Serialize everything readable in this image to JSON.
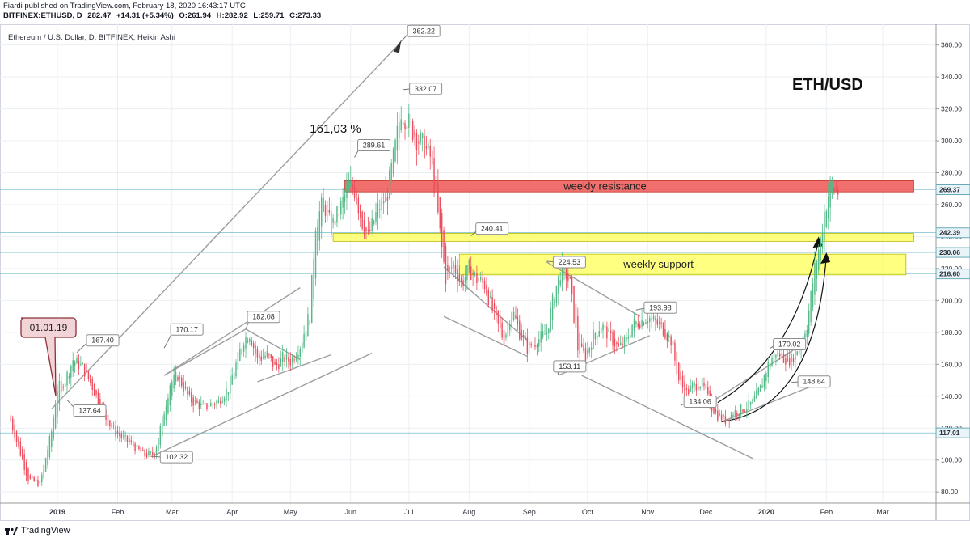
{
  "header": {
    "publisher_line": "Fiardi published on TradingView.com, February 18, 2020 16:43:17 UTC",
    "symbol": "BITFINEX:ETHUSD, D",
    "last": "282.47",
    "change": "+14.31 (+5.34%)",
    "open": "O:261.94",
    "high": "H:282.92",
    "low": "L:259.71",
    "close": "C:273.33"
  },
  "chart_title": "Ethereum / U.S. Dollar, D, BITFINEX, Heikin Ashi",
  "big_label": "ETH/USD",
  "footer": {
    "brand": "TradingView"
  },
  "colors": {
    "up": "#53b987",
    "down": "#eb4d5c",
    "resistance": "#f0605e",
    "support": "#ffff55",
    "trend_line": "#9e9e9e"
  },
  "chart_data": {
    "type": "candlestick",
    "style": "Heikin Ashi",
    "x_labels": [
      "2019",
      "Feb",
      "Mar",
      "Apr",
      "May",
      "Jun",
      "Jul",
      "Aug",
      "Sep",
      "Oct",
      "Nov",
      "Dec",
      "2020",
      "Feb",
      "Mar"
    ],
    "x_label_days": [
      0,
      31,
      59,
      90,
      120,
      151,
      181,
      212,
      243,
      273,
      304,
      334,
      365,
      396,
      425
    ],
    "y_ticks": [
      "80.00",
      "100.00",
      "120.00",
      "140.00",
      "160.00",
      "180.00",
      "200.00",
      "220.00",
      "240.00",
      "260.00",
      "280.00",
      "300.00",
      "320.00",
      "340.00",
      "360.00"
    ],
    "ylim": [
      73,
      373
    ],
    "grid": true,
    "price_tags": [
      {
        "value": 269.37,
        "label": "269.37"
      },
      {
        "value": 242.39,
        "label": "242.39"
      },
      {
        "value": 230.06,
        "label": "230.06"
      },
      {
        "value": 216.6,
        "label": "216.60"
      },
      {
        "value": 117.01,
        "label": "117.01"
      }
    ],
    "zones": [
      {
        "label": "weekly resistance",
        "day_start": 148,
        "day_end": 441,
        "low": 268,
        "high": 275,
        "kind": "resistance"
      },
      {
        "label": "",
        "day_start": 142,
        "day_end": 441,
        "low": 237,
        "high": 242,
        "kind": "support"
      },
      {
        "label": "weekly support",
        "day_start": 207,
        "day_end": 437,
        "low": 216,
        "high": 229,
        "kind": "support"
      }
    ],
    "callouts": [
      {
        "day": 10,
        "value": 167.4,
        "label": "167.40"
      },
      {
        "day": 5,
        "value": 137.64,
        "label": "137.64"
      },
      {
        "day": 48,
        "value": 102.32,
        "label": "102.32"
      },
      {
        "day": 55,
        "value": 170.17,
        "label": "170.17"
      },
      {
        "day": 97,
        "value": 182.08,
        "label": "182.08"
      },
      {
        "day": 153,
        "value": 289.61,
        "label": "289.61"
      },
      {
        "day": 177,
        "value": 362.22,
        "label": "362.22"
      },
      {
        "day": 178,
        "value": 332.07,
        "label": "332.07"
      },
      {
        "day": 213,
        "value": 240.41,
        "label": "240.41"
      },
      {
        "day": 252,
        "value": 224.53,
        "label": "224.53"
      },
      {
        "day": 298,
        "value": 193.98,
        "label": "193.98"
      },
      {
        "day": 258,
        "value": 153.11,
        "label": "153.11"
      },
      {
        "day": 321,
        "value": 134.06,
        "label": "134.06"
      },
      {
        "day": 367,
        "value": 170.02,
        "label": "170.02"
      },
      {
        "day": 378,
        "value": 148.64,
        "label": "148.64"
      }
    ],
    "date_callout": {
      "day": 0,
      "value": 140,
      "label": "01.01.19"
    },
    "annotation": {
      "label": "161,03 %",
      "day": 130,
      "value": 305
    },
    "key_points": [
      [
        -25,
        128
      ],
      [
        -15,
        88
      ],
      [
        -9,
        85
      ],
      [
        -3,
        118
      ],
      [
        0,
        145
      ],
      [
        4,
        150
      ],
      [
        8,
        163
      ],
      [
        13,
        158
      ],
      [
        18,
        146
      ],
      [
        24,
        128
      ],
      [
        30,
        117
      ],
      [
        38,
        110
      ],
      [
        45,
        103
      ],
      [
        50,
        104
      ],
      [
        54,
        125
      ],
      [
        58,
        148
      ],
      [
        62,
        153
      ],
      [
        68,
        138
      ],
      [
        75,
        133
      ],
      [
        83,
        137
      ],
      [
        88,
        145
      ],
      [
        92,
        160
      ],
      [
        96,
        176
      ],
      [
        99,
        179
      ],
      [
        103,
        163
      ],
      [
        108,
        166
      ],
      [
        112,
        158
      ],
      [
        116,
        164
      ],
      [
        120,
        162
      ],
      [
        125,
        172
      ],
      [
        130,
        192
      ],
      [
        133,
        248
      ],
      [
        137,
        262
      ],
      [
        141,
        245
      ],
      [
        145,
        256
      ],
      [
        150,
        272
      ],
      [
        153,
        269
      ],
      [
        157,
        249
      ],
      [
        160,
        240
      ],
      [
        165,
        257
      ],
      [
        170,
        268
      ],
      [
        174,
        296
      ],
      [
        177,
        320
      ],
      [
        180,
        313
      ],
      [
        185,
        302
      ],
      [
        189,
        296
      ],
      [
        192,
        290
      ],
      [
        195,
        264
      ],
      [
        197,
        242
      ],
      [
        200,
        214
      ],
      [
        204,
        223
      ],
      [
        208,
        210
      ],
      [
        212,
        220
      ],
      [
        216,
        213
      ],
      [
        220,
        210
      ],
      [
        225,
        190
      ],
      [
        230,
        175
      ],
      [
        234,
        195
      ],
      [
        238,
        180
      ],
      [
        242,
        170
      ],
      [
        247,
        175
      ],
      [
        252,
        180
      ],
      [
        256,
        205
      ],
      [
        260,
        222
      ],
      [
        264,
        210
      ],
      [
        268,
        170
      ],
      [
        272,
        165
      ],
      [
        276,
        178
      ],
      [
        280,
        185
      ],
      [
        284,
        178
      ],
      [
        289,
        170
      ],
      [
        293,
        175
      ],
      [
        296,
        185
      ],
      [
        300,
        187
      ],
      [
        304,
        190
      ],
      [
        308,
        186
      ],
      [
        312,
        182
      ],
      [
        316,
        175
      ],
      [
        320,
        150
      ],
      [
        324,
        142
      ],
      [
        328,
        147
      ],
      [
        332,
        148
      ],
      [
        336,
        135
      ],
      [
        340,
        128
      ],
      [
        344,
        125
      ],
      [
        348,
        130
      ],
      [
        353,
        132
      ],
      [
        358,
        136
      ],
      [
        362,
        145
      ],
      [
        366,
        160
      ],
      [
        370,
        168
      ],
      [
        374,
        164
      ],
      [
        378,
        163
      ],
      [
        382,
        172
      ],
      [
        386,
        185
      ],
      [
        390,
        220
      ],
      [
        393,
        238
      ],
      [
        395,
        255
      ],
      [
        398,
        272
      ],
      [
        402,
        268
      ]
    ]
  }
}
